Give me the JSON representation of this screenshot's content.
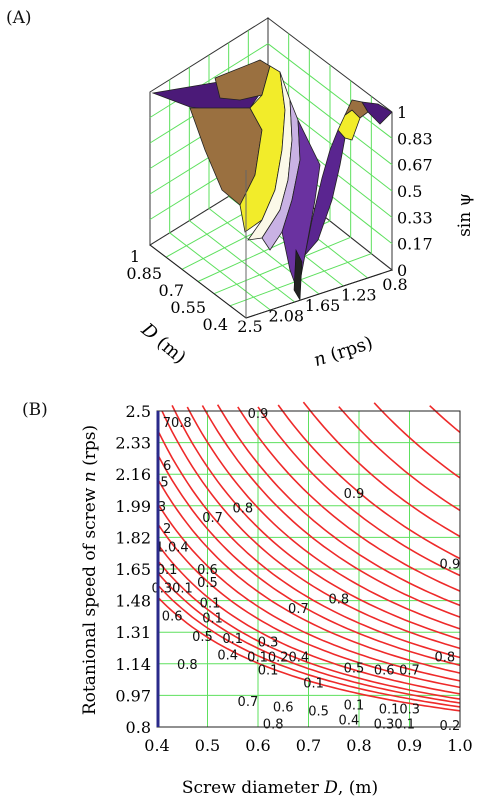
{
  "panelA": {
    "label": "(A)",
    "chart_data": {
      "type": "surface",
      "zlabel": "sin ψ",
      "xlabel_prefix": "D",
      "xlabel_suffix": " (m)",
      "ylabel_prefix": "n",
      "ylabel_suffix": " (rps)",
      "z_ticks": [
        "1",
        "0.83",
        "0.67",
        "0.5",
        "0.33",
        "0.17",
        "0"
      ],
      "D_ticks": [
        "1",
        "0.85",
        "0.7",
        "0.55",
        "0.4"
      ],
      "n_ticks": [
        "2.5",
        "2.08",
        "1.65",
        "1.23",
        "0.8"
      ],
      "D_range": [
        0.4,
        1.0
      ],
      "n_range": [
        0.8,
        2.5
      ],
      "z_range": [
        0,
        1
      ],
      "colors": [
        "#4b1a78",
        "#9a7040",
        "#f2ec2a",
        "#ffffff",
        "#b89ad8",
        "#6a32a0"
      ]
    }
  },
  "panelB": {
    "label": "(B)",
    "chart_data": {
      "type": "contour",
      "xlabel_prefix": "Screw diameter ",
      "xlabel_var": "D",
      "xlabel_suffix": ", (m)",
      "ylabel_prefix": "Rotanional speed of screw ",
      "ylabel_var": "n",
      "ylabel_suffix": " (rps)",
      "x_ticks": [
        "0.4",
        "0.5",
        "0.6",
        "0.7",
        "0.8",
        "0.9",
        "1.0"
      ],
      "y_ticks": [
        "2.5",
        "2.33",
        "2.16",
        "1.99",
        "1.82",
        "1.65",
        "1.48",
        "1.31",
        "1.14",
        "0.97",
        "0.8"
      ],
      "xlim": [
        0.4,
        1.0
      ],
      "ylim": [
        0.8,
        2.5
      ],
      "grid": true,
      "line_color": "#ee2a2a",
      "grid_color": "#5ee05e",
      "contour_labels": [
        {
          "text": "0.9",
          "x": 0.6,
          "y": 2.49
        },
        {
          "text": "0.9",
          "x": 0.79,
          "y": 2.06
        },
        {
          "text": "0.9",
          "x": 0.98,
          "y": 1.68
        },
        {
          "text": "70.8",
          "x": 0.44,
          "y": 2.44
        },
        {
          "text": "6",
          "x": 0.42,
          "y": 2.21
        },
        {
          "text": "5",
          "x": 0.415,
          "y": 2.12
        },
        {
          "text": "3",
          "x": 0.41,
          "y": 1.99
        },
        {
          "text": "2",
          "x": 0.42,
          "y": 1.87
        },
        {
          "text": "0.7",
          "x": 0.51,
          "y": 1.93
        },
        {
          "text": "0.8",
          "x": 0.57,
          "y": 1.98
        },
        {
          "text": "1.0.4",
          "x": 0.43,
          "y": 1.77
        },
        {
          "text": "0.1",
          "x": 0.42,
          "y": 1.65
        },
        {
          "text": "0.6",
          "x": 0.5,
          "y": 1.65
        },
        {
          "text": "0.30.1",
          "x": 0.43,
          "y": 1.55
        },
        {
          "text": "0.5",
          "x": 0.5,
          "y": 1.58
        },
        {
          "text": "0.6",
          "x": 0.43,
          "y": 1.4
        },
        {
          "text": "0.1",
          "x": 0.505,
          "y": 1.47
        },
        {
          "text": "0.1",
          "x": 0.51,
          "y": 1.39
        },
        {
          "text": "0.7",
          "x": 0.68,
          "y": 1.44
        },
        {
          "text": "0.8",
          "x": 0.76,
          "y": 1.49
        },
        {
          "text": "0.5",
          "x": 0.49,
          "y": 1.29
        },
        {
          "text": "0.1",
          "x": 0.55,
          "y": 1.28
        },
        {
          "text": "0.3",
          "x": 0.62,
          "y": 1.26
        },
        {
          "text": "0.8",
          "x": 0.46,
          "y": 1.14
        },
        {
          "text": "0.4",
          "x": 0.54,
          "y": 1.19
        },
        {
          "text": "0.10.20.4",
          "x": 0.64,
          "y": 1.18
        },
        {
          "text": "0.1",
          "x": 0.62,
          "y": 1.11
        },
        {
          "text": "0.5",
          "x": 0.79,
          "y": 1.12
        },
        {
          "text": "0.6",
          "x": 0.85,
          "y": 1.11
        },
        {
          "text": "0.7",
          "x": 0.9,
          "y": 1.11
        },
        {
          "text": "0.8",
          "x": 0.97,
          "y": 1.18
        },
        {
          "text": "0.1",
          "x": 0.71,
          "y": 1.04
        },
        {
          "text": "0.7",
          "x": 0.58,
          "y": 0.94
        },
        {
          "text": "0.6",
          "x": 0.65,
          "y": 0.91
        },
        {
          "text": "0.5",
          "x": 0.72,
          "y": 0.89
        },
        {
          "text": "0.1",
          "x": 0.79,
          "y": 0.92
        },
        {
          "text": "0.10.3",
          "x": 0.88,
          "y": 0.9
        },
        {
          "text": "0.8",
          "x": 0.63,
          "y": 0.82
        },
        {
          "text": "0.4",
          "x": 0.78,
          "y": 0.84
        },
        {
          "text": "0.30.1",
          "x": 0.87,
          "y": 0.82
        },
        {
          "text": "0.2",
          "x": 0.98,
          "y": 0.81
        }
      ]
    }
  }
}
